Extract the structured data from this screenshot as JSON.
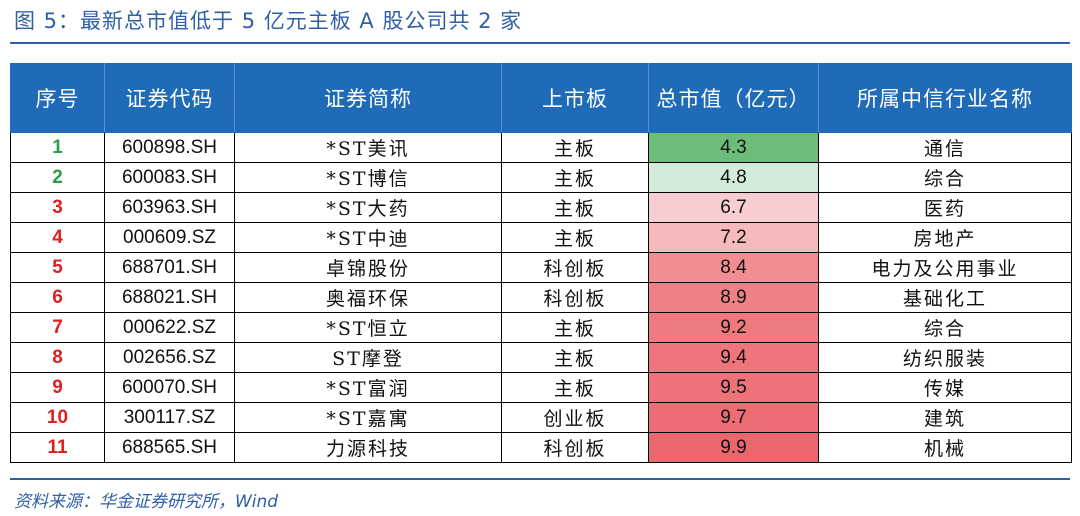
{
  "title": "图 5：最新总市值低于 5 亿元主板 A 股公司共 2 家",
  "table": {
    "headers": [
      "序号",
      "证券代码",
      "证券简称",
      "上市板",
      "总市值（亿元）",
      "所属中信行业名称"
    ],
    "rows": [
      {
        "idx": "1",
        "code": "600898.SH",
        "name": "*ST美讯",
        "board": "主板",
        "cap": "4.3",
        "industry": "通信",
        "idx_color": "#2e9b48",
        "cap_bg": "#6dbd7a"
      },
      {
        "idx": "2",
        "code": "600083.SH",
        "name": "*ST博信",
        "board": "主板",
        "cap": "4.8",
        "industry": "综合",
        "idx_color": "#2e9b48",
        "cap_bg": "#d3ecd9"
      },
      {
        "idx": "3",
        "code": "603963.SH",
        "name": "*ST大药",
        "board": "主板",
        "cap": "6.7",
        "industry": "医药",
        "idx_color": "#e02020",
        "cap_bg": "#f8cdcf"
      },
      {
        "idx": "4",
        "code": "000609.SZ",
        "name": "*ST中迪",
        "board": "主板",
        "cap": "7.2",
        "industry": "房地产",
        "idx_color": "#e02020",
        "cap_bg": "#f6b9bc"
      },
      {
        "idx": "5",
        "code": "688701.SH",
        "name": "卓锦股份",
        "board": "科创板",
        "cap": "8.4",
        "industry": "电力及公用事业",
        "idx_color": "#e02020",
        "cap_bg": "#f18e93"
      },
      {
        "idx": "6",
        "code": "688021.SH",
        "name": "奥福环保",
        "board": "科创板",
        "cap": "8.9",
        "industry": "基础化工",
        "idx_color": "#e02020",
        "cap_bg": "#ef8186"
      },
      {
        "idx": "7",
        "code": "000622.SZ",
        "name": "*ST恒立",
        "board": "主板",
        "cap": "9.2",
        "industry": "综合",
        "idx_color": "#e02020",
        "cap_bg": "#ee7a80"
      },
      {
        "idx": "8",
        "code": "002656.SZ",
        "name": "ST摩登",
        "board": "主板",
        "cap": "9.4",
        "industry": "纺织服装",
        "idx_color": "#e02020",
        "cap_bg": "#ed757b"
      },
      {
        "idx": "9",
        "code": "600070.SH",
        "name": "*ST富润",
        "board": "主板",
        "cap": "9.5",
        "industry": "传媒",
        "idx_color": "#e02020",
        "cap_bg": "#ed7379"
      },
      {
        "idx": "10",
        "code": "300117.SZ",
        "name": "*ST嘉寓",
        "board": "创业板",
        "cap": "9.7",
        "industry": "建筑",
        "idx_color": "#e02020",
        "cap_bg": "#ec6e74"
      },
      {
        "idx": "11",
        "code": "688565.SH",
        "name": "力源科技",
        "board": "科创板",
        "cap": "9.9",
        "industry": "机械",
        "idx_color": "#e02020",
        "cap_bg": "#eb676e"
      }
    ]
  },
  "source": "资料来源：华金证券研究所，Wind"
}
